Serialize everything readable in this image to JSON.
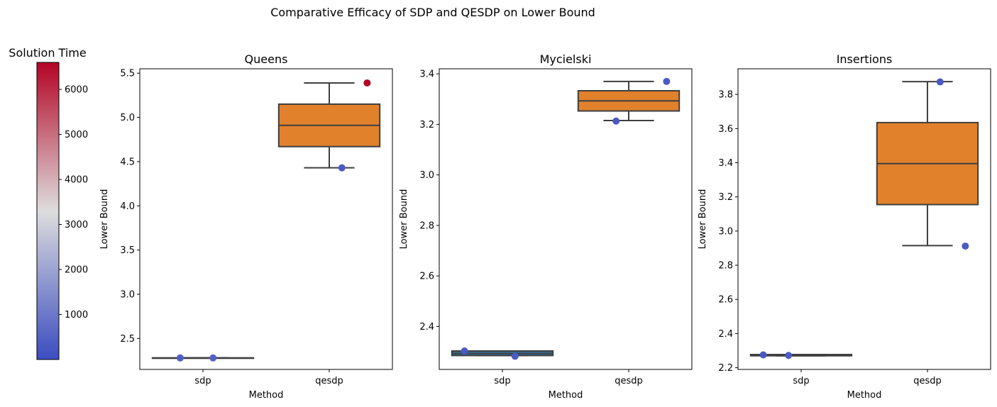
{
  "suptitle": "Comparative Efficacy of SDP and QESDP on Lower Bound",
  "colorbar": {
    "title": "Solution Time",
    "min": 0,
    "max": 6600,
    "ticks": [
      1000,
      2000,
      3000,
      4000,
      5000,
      6000
    ],
    "colormap": "coolwarm"
  },
  "colors": {
    "sdp_box": "#3274a1",
    "qesdp_box": "#e1812c",
    "box_edge": "#3f3f3f",
    "colormap_low": "#3b4cc0",
    "colormap_mid": "#dddddd",
    "colormap_high": "#b40426"
  },
  "chart_data": [
    {
      "type": "box",
      "title": "Queens",
      "xlabel": "Method",
      "ylabel": "Lower Bound",
      "categories": [
        "sdp",
        "qesdp"
      ],
      "ylim": [
        2.15,
        5.55
      ],
      "yticks": [
        2.5,
        3.0,
        3.5,
        4.0,
        4.5,
        5.0,
        5.5
      ],
      "ytick_labels": [
        "2.5",
        "3.0",
        "3.5",
        "4.0",
        "4.5",
        "5.0",
        "5.5"
      ],
      "boxes": [
        {
          "category": "sdp",
          "whisker_low": 2.28,
          "q1": 2.28,
          "median": 2.28,
          "q3": 2.28,
          "whisker_high": 2.28
        },
        {
          "category": "qesdp",
          "whisker_low": 4.43,
          "q1": 4.67,
          "median": 4.91,
          "q3": 5.15,
          "whisker_high": 5.39
        }
      ],
      "points": [
        {
          "category": "sdp",
          "jitter": -0.18,
          "value": 2.28,
          "time": 400
        },
        {
          "category": "sdp",
          "jitter": 0.08,
          "value": 2.28,
          "time": 500
        },
        {
          "category": "qesdp",
          "jitter": 0.1,
          "value": 4.43,
          "time": 300
        },
        {
          "category": "qesdp",
          "jitter": 0.3,
          "value": 5.39,
          "time": 6600
        }
      ]
    },
    {
      "type": "box",
      "title": "Mycielski",
      "xlabel": "Method",
      "ylabel": "Lower Bound",
      "categories": [
        "sdp",
        "qesdp"
      ],
      "ylim": [
        2.23,
        3.42
      ],
      "yticks": [
        2.4,
        2.6,
        2.8,
        3.0,
        3.2,
        3.4
      ],
      "ytick_labels": [
        "2.4",
        "2.6",
        "2.8",
        "3.0",
        "3.2",
        "3.4"
      ],
      "boxes": [
        {
          "category": "sdp",
          "whisker_low": 2.285,
          "q1": 2.285,
          "median": 2.293,
          "q3": 2.303,
          "whisker_high": 2.303
        },
        {
          "category": "qesdp",
          "whisker_low": 3.215,
          "q1": 3.253,
          "median": 3.293,
          "q3": 3.333,
          "whisker_high": 3.37
        }
      ],
      "points": [
        {
          "category": "sdp",
          "jitter": -0.3,
          "value": 2.303,
          "time": 300
        },
        {
          "category": "sdp",
          "jitter": 0.1,
          "value": 2.282,
          "time": 350
        },
        {
          "category": "qesdp",
          "jitter": -0.1,
          "value": 3.213,
          "time": 300
        },
        {
          "category": "qesdp",
          "jitter": 0.3,
          "value": 3.37,
          "time": 350
        }
      ]
    },
    {
      "type": "box",
      "title": "Insertions",
      "xlabel": "Method",
      "ylabel": "Lower Bound",
      "categories": [
        "sdp",
        "qesdp"
      ],
      "ylim": [
        2.19,
        3.95
      ],
      "yticks": [
        2.2,
        2.4,
        2.6,
        2.8,
        3.0,
        3.2,
        3.4,
        3.6,
        3.8
      ],
      "ytick_labels": [
        "2.2",
        "2.4",
        "2.6",
        "2.8",
        "3.0",
        "3.2",
        "3.4",
        "3.6",
        "3.8"
      ],
      "boxes": [
        {
          "category": "sdp",
          "whisker_low": 2.27,
          "q1": 2.27,
          "median": 2.273,
          "q3": 2.277,
          "whisker_high": 2.277
        },
        {
          "category": "qesdp",
          "whisker_low": 2.915,
          "q1": 3.155,
          "median": 3.395,
          "q3": 3.635,
          "whisker_high": 3.875
        }
      ],
      "points": [
        {
          "category": "sdp",
          "jitter": -0.3,
          "value": 2.275,
          "time": 300
        },
        {
          "category": "sdp",
          "jitter": -0.1,
          "value": 2.272,
          "time": 350
        },
        {
          "category": "qesdp",
          "jitter": 0.1,
          "value": 3.873,
          "time": 300
        },
        {
          "category": "qesdp",
          "jitter": 0.3,
          "value": 2.912,
          "time": 350
        }
      ]
    }
  ]
}
